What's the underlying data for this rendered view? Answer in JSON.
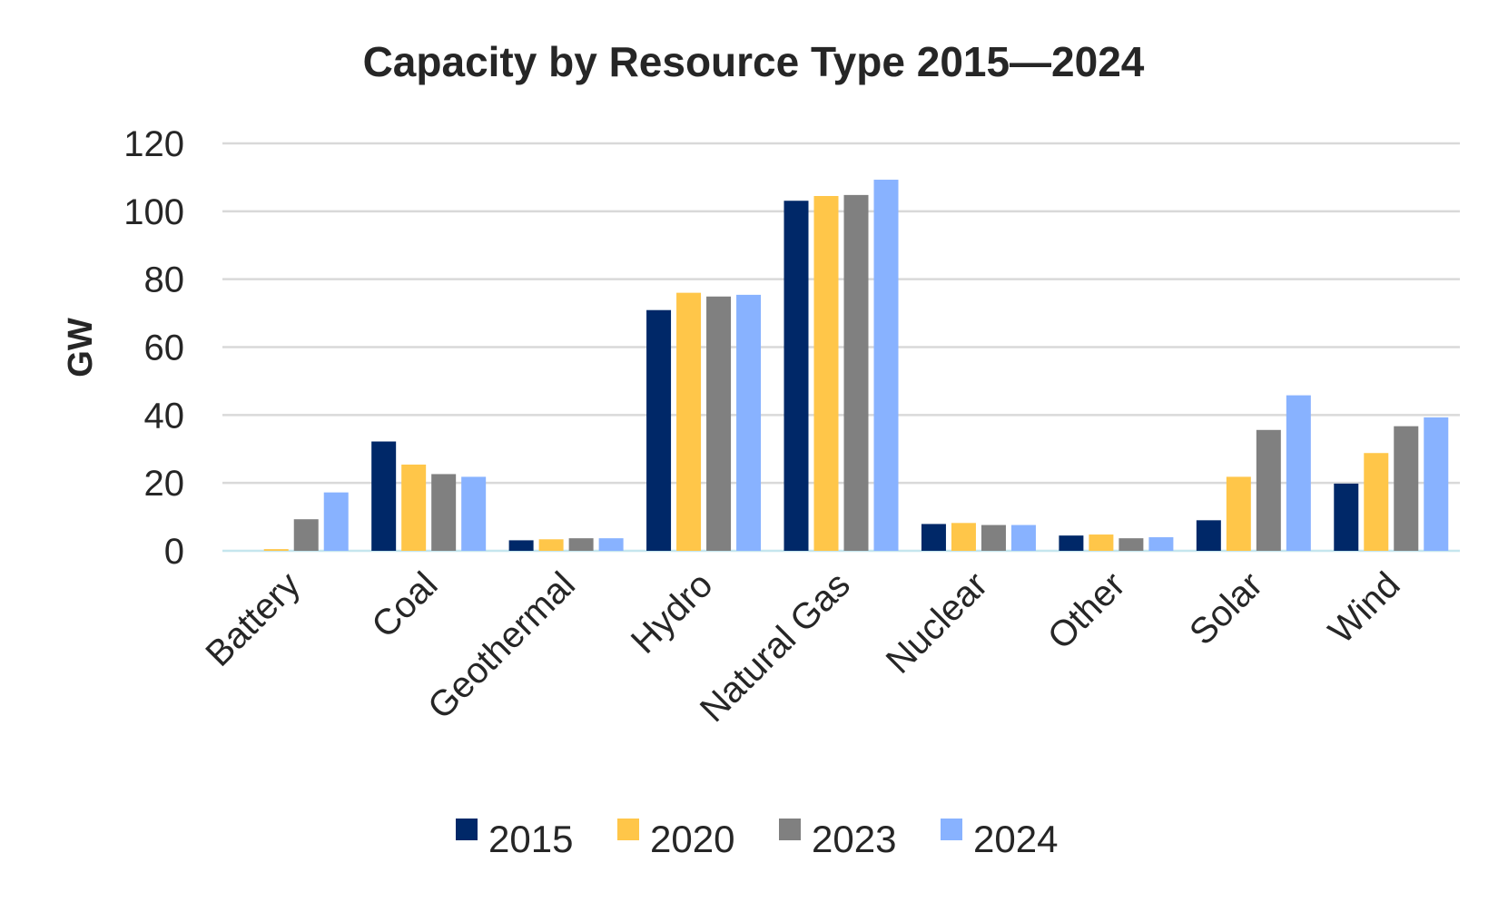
{
  "chart_data": {
    "type": "bar",
    "title": "Capacity by Resource Type 2015—2024",
    "xlabel": "",
    "ylabel": "GW",
    "ylim": [
      0,
      120
    ],
    "yticks": [
      0,
      20,
      40,
      60,
      80,
      100,
      120
    ],
    "grid": true,
    "legend_placement": "bottom",
    "categories": [
      "Battery",
      "Coal",
      "Geothermal",
      "Hydro",
      "Natural Gas",
      "Nuclear",
      "Other",
      "Solar",
      "Wind"
    ],
    "series": [
      {
        "name": "2015",
        "color": "#002868",
        "values": [
          0,
          32.2,
          3.1,
          70.9,
          103.1,
          7.9,
          4.5,
          9.0,
          19.8
        ]
      },
      {
        "name": "2020",
        "color": "#FFC649",
        "values": [
          0.5,
          25.4,
          3.4,
          76.0,
          104.5,
          8.2,
          4.8,
          21.8,
          28.8
        ]
      },
      {
        "name": "2023",
        "color": "#808080",
        "values": [
          9.3,
          22.6,
          3.7,
          74.9,
          104.8,
          7.6,
          3.7,
          35.6,
          36.7
        ]
      },
      {
        "name": "2024",
        "color": "#88B2FF",
        "values": [
          17.2,
          21.8,
          3.7,
          75.4,
          109.3,
          7.6,
          4.0,
          45.8,
          39.3
        ]
      }
    ]
  }
}
